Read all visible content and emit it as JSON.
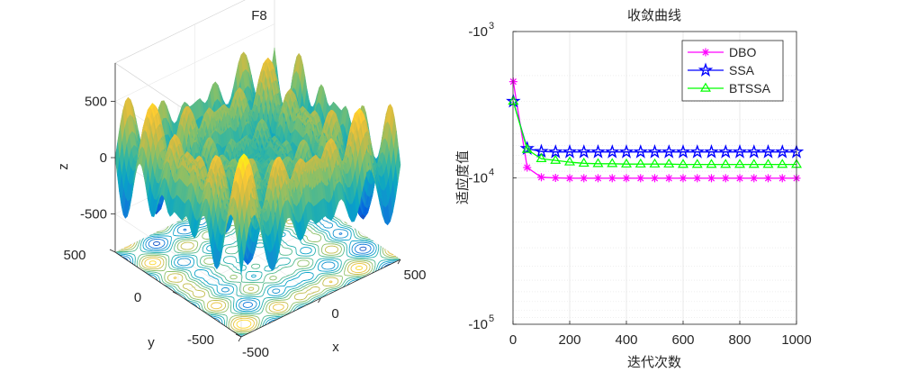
{
  "chart_data": [
    {
      "type": "surface3d",
      "title": "F8",
      "xlabel": "x",
      "ylabel": "y",
      "zlabel": "z",
      "xlim": [
        -500,
        500
      ],
      "ylim": [
        -500,
        500
      ],
      "zlim": [
        -840,
        840
      ],
      "x_ticks": [
        -500,
        0,
        500
      ],
      "y_ticks": [
        -500,
        0,
        500
      ],
      "z_ticks": [
        -500,
        0,
        500
      ],
      "function": "f(x,y) = -x*sin(sqrt(|x|)) - y*sin(sqrt(|y|))",
      "colormap": "parula",
      "contour_projection": true,
      "view": "3d-default"
    },
    {
      "type": "line",
      "title": "收敛曲线",
      "xlabel": "迭代次数",
      "ylabel": "适应度值",
      "xlim": [
        0,
        1000
      ],
      "x_ticks": [
        0,
        200,
        400,
        600,
        800,
        1000
      ],
      "yscale": "log-negative",
      "ylim": [
        -1000,
        -100000
      ],
      "y_ticks": [
        {
          "base": "-10",
          "exp": "3",
          "value": -1000
        },
        {
          "base": "-10",
          "exp": "4",
          "value": -10000
        },
        {
          "base": "-10",
          "exp": "5",
          "value": -100000
        }
      ],
      "grid": true,
      "legend_position": "top-right",
      "series": [
        {
          "name": "DBO",
          "color": "#ff00ff",
          "marker": "asterisk",
          "x": [
            1,
            50,
            100,
            150,
            200,
            250,
            300,
            350,
            400,
            450,
            500,
            550,
            600,
            650,
            700,
            750,
            800,
            850,
            900,
            950,
            1000
          ],
          "y": [
            -2200,
            -8500,
            -9900,
            -10000,
            -10050,
            -10050,
            -10050,
            -10050,
            -10050,
            -10050,
            -10050,
            -10050,
            -10050,
            -10050,
            -10050,
            -10050,
            -10050,
            -10050,
            -10050,
            -10050,
            -10050
          ]
        },
        {
          "name": "SSA",
          "color": "#0000ff",
          "marker": "pentagram",
          "x": [
            1,
            50,
            100,
            150,
            200,
            250,
            300,
            350,
            400,
            450,
            500,
            550,
            600,
            650,
            700,
            750,
            800,
            850,
            900,
            950,
            1000
          ],
          "y": [
            -3000,
            -6300,
            -6600,
            -6650,
            -6650,
            -6650,
            -6650,
            -6650,
            -6650,
            -6650,
            -6650,
            -6650,
            -6650,
            -6650,
            -6650,
            -6650,
            -6650,
            -6650,
            -6650,
            -6650,
            -6650
          ]
        },
        {
          "name": "BTSSA",
          "color": "#00ff00",
          "marker": "triangle",
          "x": [
            1,
            50,
            100,
            150,
            200,
            250,
            300,
            350,
            400,
            450,
            500,
            550,
            600,
            650,
            700,
            750,
            800,
            850,
            900,
            950,
            1000
          ],
          "y": [
            -3000,
            -6400,
            -7400,
            -7600,
            -7800,
            -7950,
            -8000,
            -8000,
            -8050,
            -8050,
            -8050,
            -8050,
            -8100,
            -8100,
            -8100,
            -8100,
            -8100,
            -8100,
            -8100,
            -8100,
            -8100
          ]
        }
      ]
    }
  ]
}
